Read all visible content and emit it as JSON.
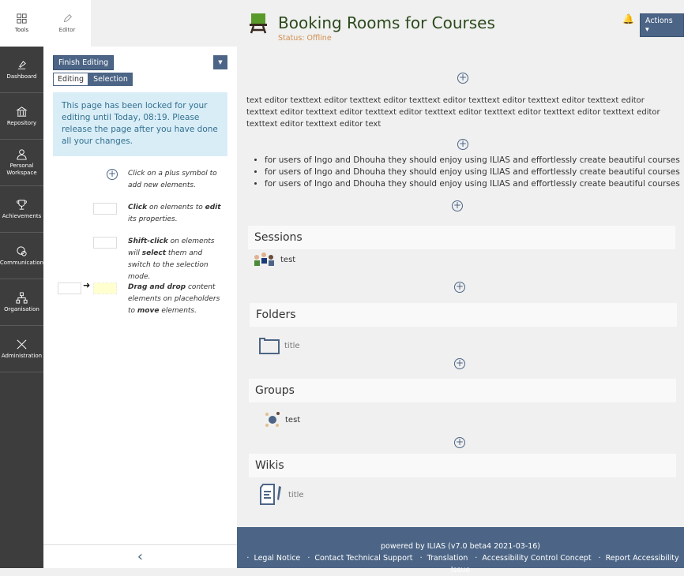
{
  "rail": [
    {
      "label": "Tools",
      "icon": "grid-icon"
    },
    {
      "label": "Dashboard",
      "icon": "dashboard-icon"
    },
    {
      "label": "Repository",
      "icon": "bank-icon"
    },
    {
      "label": "Personal Workspace",
      "icon": "user-icon"
    },
    {
      "label": "Achievements",
      "icon": "trophy-icon"
    },
    {
      "label": "Communication",
      "icon": "chat-icon"
    },
    {
      "label": "Organisation",
      "icon": "org-icon"
    },
    {
      "label": "Administration",
      "icon": "tools-icon"
    }
  ],
  "panel": {
    "tab": "Editor",
    "finish": "Finish Editing",
    "mode_editing": "Editing",
    "mode_selection": "Selection",
    "info": "This page has been locked for your editing until Today, 08:19. Please release the page after you have done all your changes.",
    "help1": "Click on a plus symbol to add new elements.",
    "help2_b1": "Click",
    "help2_t1": " on elements to ",
    "help2_b2": "edit",
    "help2_t2": " its properties.",
    "help3_b1": "Shift-click",
    "help3_t1": " on elements will ",
    "help3_b2": "select",
    "help3_t2": " them and switch to the selection mode.",
    "help4_b1": "Drag and drop",
    "help4_t1": " content elements on placeholders to ",
    "help4_b2": "move",
    "help4_t2": " elements."
  },
  "header": {
    "title": "Booking Rooms for Courses",
    "status": "Status: Offline",
    "actions": "Actions ▾"
  },
  "content": {
    "text": "text editor texttext editor texttext editor texttext editor texttext editor texttext editor texttext editor texttext editor texttext editor texttext editor texttext editor texttext editor texttext editor texttext editor texttext editor texttext editor text",
    "bullets": [
      "for users of Ingo and Dhouha they should enjoy using ILIAS and effortlessly create beautiful courses",
      "for users of Ingo and Dhouha they should enjoy using ILIAS and effortlessly create beautiful courses",
      "for users of Ingo and Dhouha they should enjoy using ILIAS and effortlessly create beautiful courses"
    ],
    "sessions": {
      "title": "Sessions",
      "item": "test"
    },
    "folders": {
      "title": "Folders",
      "item": "title"
    },
    "groups": {
      "title": "Groups",
      "item": "test"
    },
    "wikis": {
      "title": "Wikis",
      "item": "title"
    }
  },
  "footer": {
    "powered": "powered by ILIAS (v7.0 beta4 2021-03-16)",
    "links": [
      "Legal Notice",
      "Contact Technical Support",
      "Translation",
      "Accessibility Control Concept",
      "Report Accessibility Issue"
    ]
  },
  "colors": {
    "primary": "#4c6586",
    "info_bg": "#d9edf7",
    "status": "#d28d4f",
    "title": "#2c4a1c"
  }
}
